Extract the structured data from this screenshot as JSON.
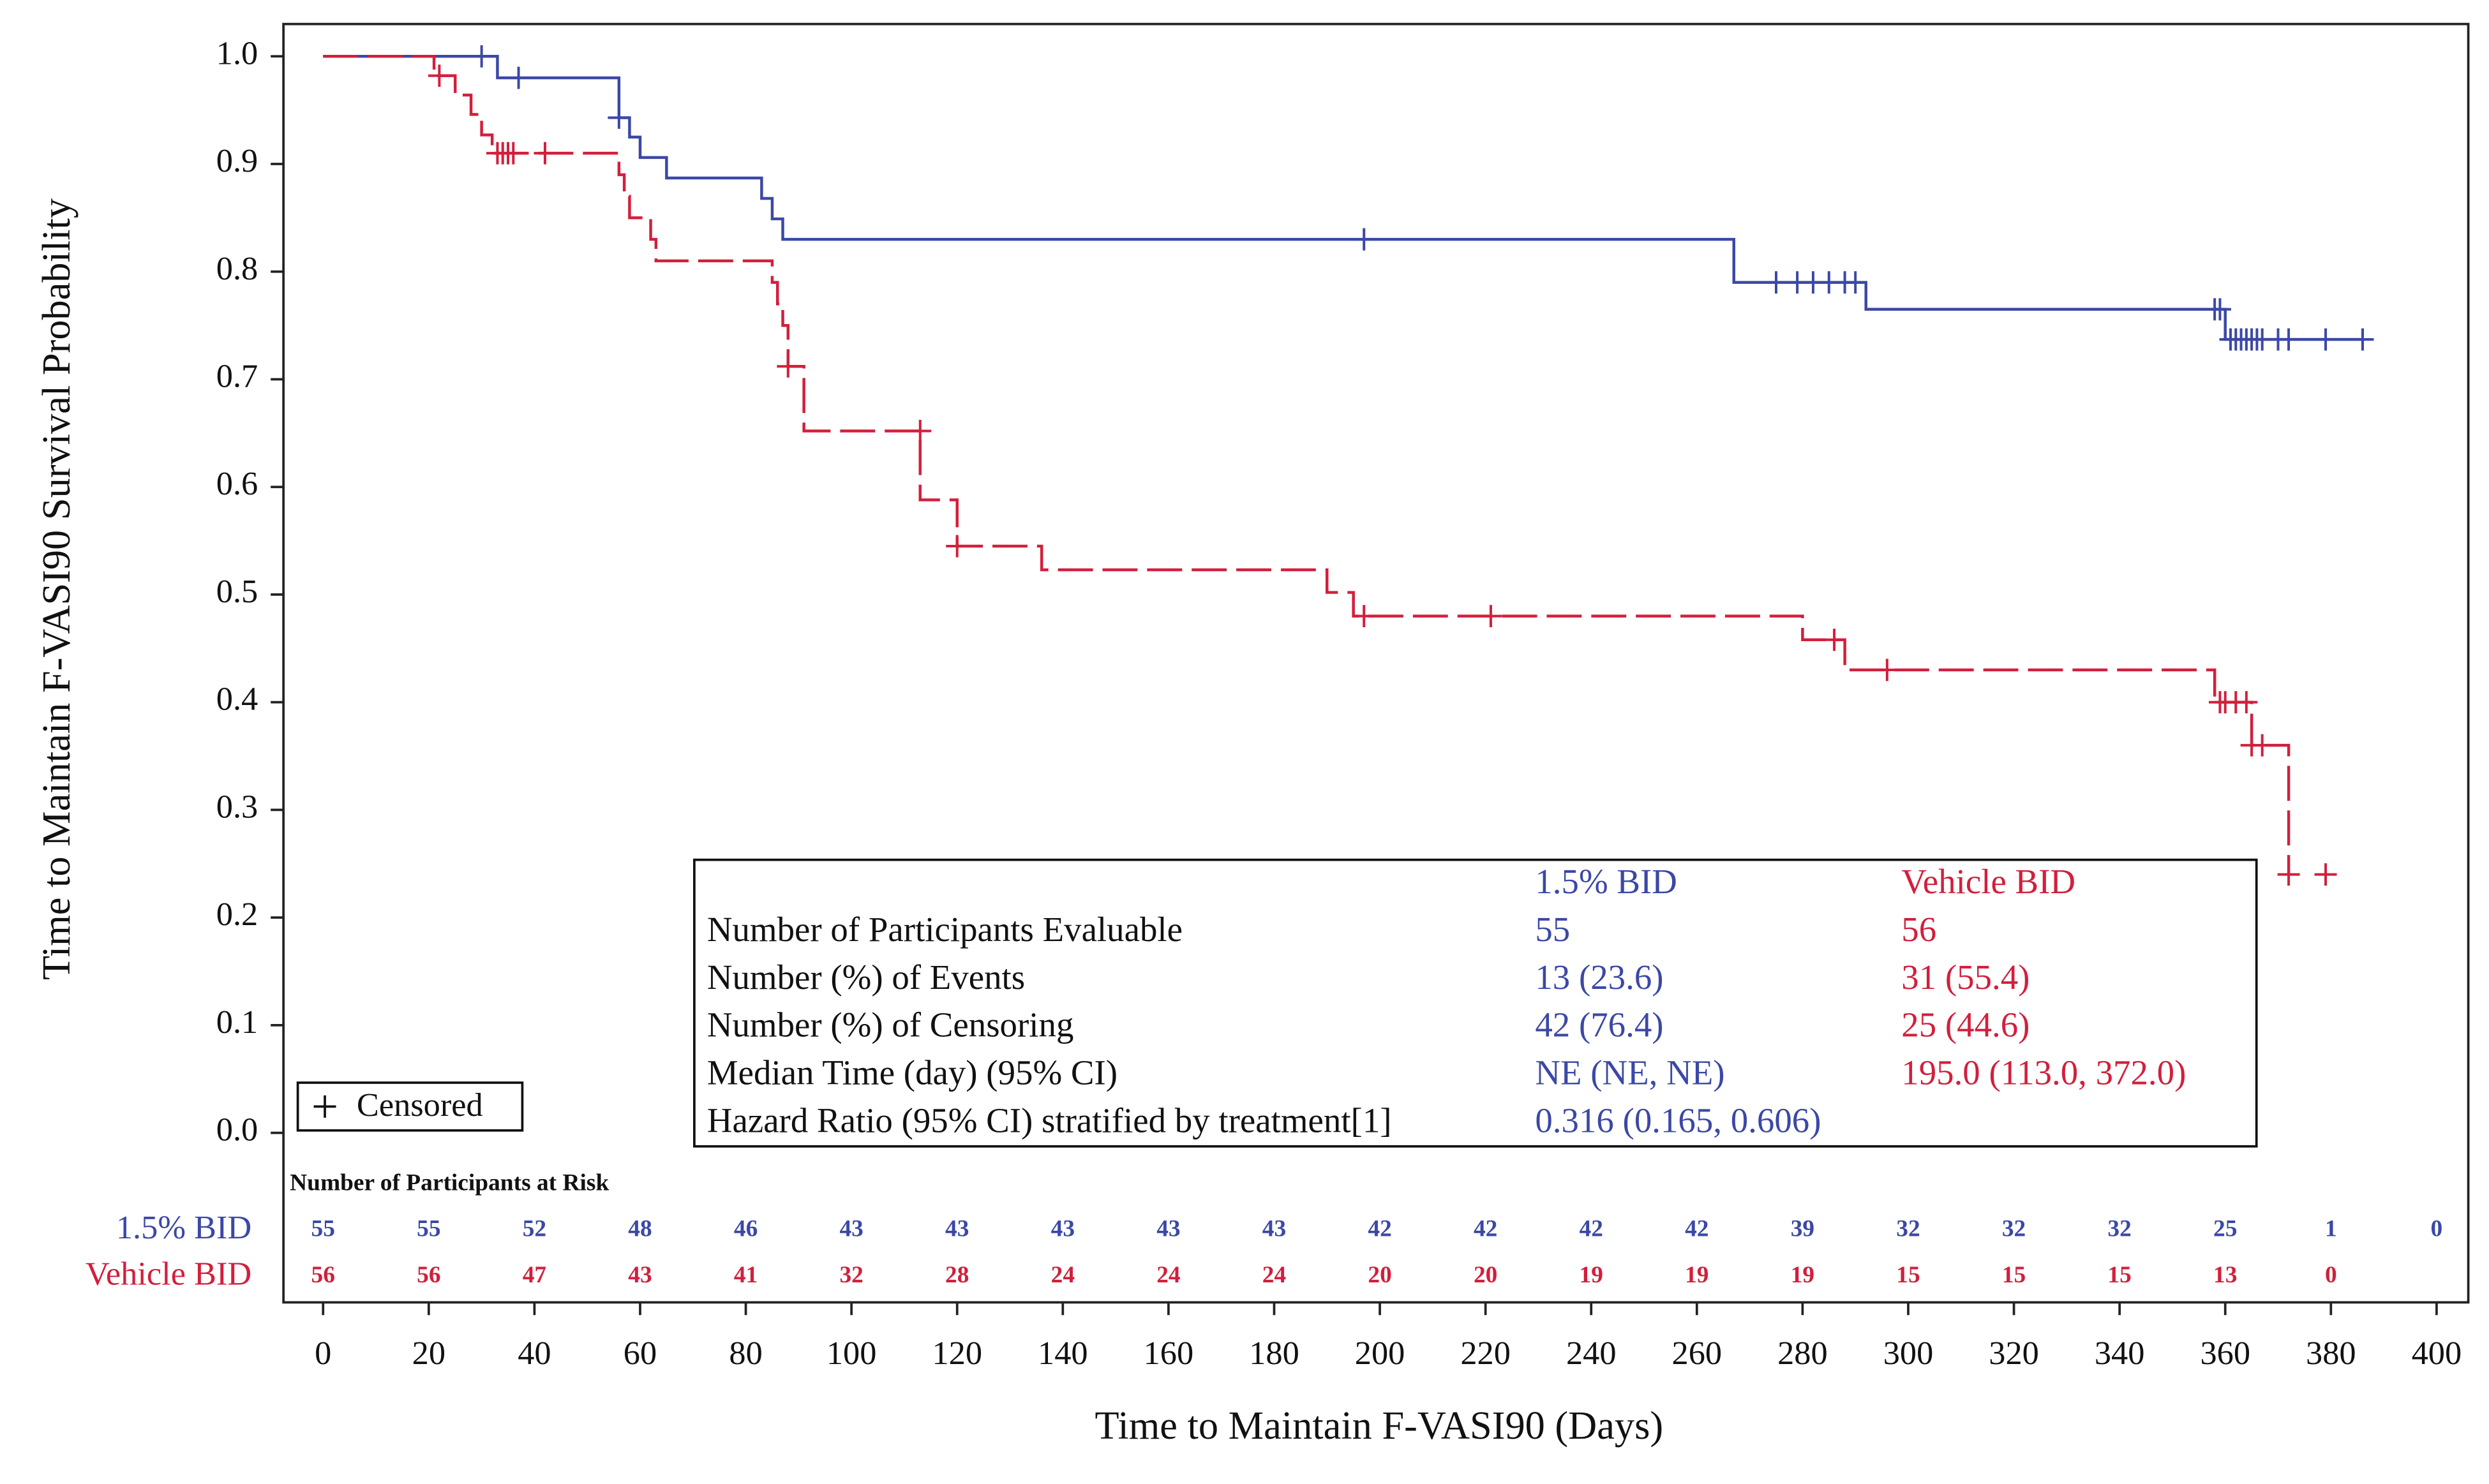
{
  "chart_data": {
    "type": "kaplan-meier",
    "x_label": "Time to Maintain F-VASI90 (Days)",
    "y_label": "Time to Maintain F-VASI90 Survival Probability",
    "xlim": [
      -7.5,
      406
    ],
    "ylim": [
      -0.017,
      1.03
    ],
    "xticks": [
      0,
      20,
      40,
      60,
      80,
      100,
      120,
      140,
      160,
      180,
      200,
      220,
      240,
      260,
      280,
      300,
      320,
      340,
      360,
      380,
      400
    ],
    "yticks": [
      {
        "value": 0,
        "label": "0.0"
      },
      0.1,
      0.2,
      0.3,
      0.4,
      0.5,
      0.6,
      0.7,
      0.8,
      0.9,
      {
        "value": 1,
        "label": "1.0"
      }
    ],
    "censor_legend": "Censored",
    "series": [
      {
        "name": "1.5% BID",
        "color": "#3b48a6",
        "dashed": false,
        "x": [
          0,
          33,
          56,
          58,
          60,
          65,
          83,
          85,
          87,
          267,
          292,
          360,
          386
        ],
        "values": [
          1.0,
          0.98,
          0.943,
          0.925,
          0.906,
          0.887,
          0.868,
          0.849,
          0.83,
          0.79,
          0.765,
          0.737,
          0.737
        ],
        "censor_x": [
          30,
          37,
          56,
          197,
          275,
          279,
          282,
          285,
          288,
          290,
          358,
          359,
          361,
          362,
          363,
          364,
          365,
          366,
          367,
          370,
          372,
          379,
          386
        ],
        "censor_values": [
          1.0,
          0.98,
          0.943,
          0.83,
          0.79,
          0.79,
          0.79,
          0.79,
          0.79,
          0.79,
          0.765,
          0.765,
          0.737,
          0.737,
          0.737,
          0.737,
          0.737,
          0.737,
          0.737,
          0.737,
          0.737,
          0.737,
          0.737
        ],
        "at_risk": [
          55,
          55,
          52,
          48,
          46,
          43,
          43,
          43,
          43,
          43,
          42,
          42,
          42,
          42,
          39,
          32,
          32,
          32,
          25,
          1,
          0
        ]
      },
      {
        "name": "Vehicle BID",
        "color": "#d21f3c",
        "dashed": true,
        "x": [
          0,
          21,
          25,
          28,
          30,
          32,
          56,
          57,
          58,
          62,
          63,
          85,
          86,
          87,
          88,
          91,
          113,
          120,
          136,
          190,
          195,
          280,
          288,
          358,
          365,
          372
        ],
        "values": [
          1.0,
          0.982,
          0.964,
          0.946,
          0.927,
          0.91,
          0.89,
          0.87,
          0.85,
          0.83,
          0.81,
          0.79,
          0.77,
          0.75,
          0.712,
          0.652,
          0.588,
          0.545,
          0.523,
          0.502,
          0.48,
          0.458,
          0.43,
          0.4,
          0.36,
          0.24
        ],
        "censor_x": [
          22,
          33,
          34,
          35,
          36,
          42,
          88,
          113,
          120,
          197,
          221,
          286,
          296,
          359,
          360,
          362,
          364,
          365,
          367,
          372,
          379
        ],
        "censor_values": [
          0.982,
          0.91,
          0.91,
          0.91,
          0.91,
          0.91,
          0.712,
          0.652,
          0.545,
          0.48,
          0.48,
          0.458,
          0.43,
          0.4,
          0.4,
          0.4,
          0.4,
          0.36,
          0.36,
          0.24,
          0.24
        ],
        "at_risk": [
          56,
          56,
          47,
          43,
          41,
          32,
          28,
          24,
          24,
          24,
          20,
          20,
          19,
          19,
          19,
          15,
          15,
          15,
          13,
          0,
          null
        ]
      }
    ],
    "at_risk_title": "Number of Participants at Risk",
    "summary": [
      {
        "label": "Number of Participants Evaluable",
        "values": [
          "55",
          "56"
        ]
      },
      {
        "label": "Number (%) of Events",
        "values": [
          "13 (23.6)",
          "31 (55.4)"
        ]
      },
      {
        "label": "Number (%) of Censoring",
        "values": [
          "42 (76.4)",
          "25 (44.6)"
        ]
      },
      {
        "label": "Median Time (day) (95% CI)",
        "values": [
          "NE (NE, NE)",
          "195.0 (113.0, 372.0)"
        ]
      },
      {
        "label": "Hazard Ratio (95% CI) stratified by treatment[1]",
        "values": [
          "0.316 (0.165, 0.606)"
        ]
      }
    ]
  }
}
